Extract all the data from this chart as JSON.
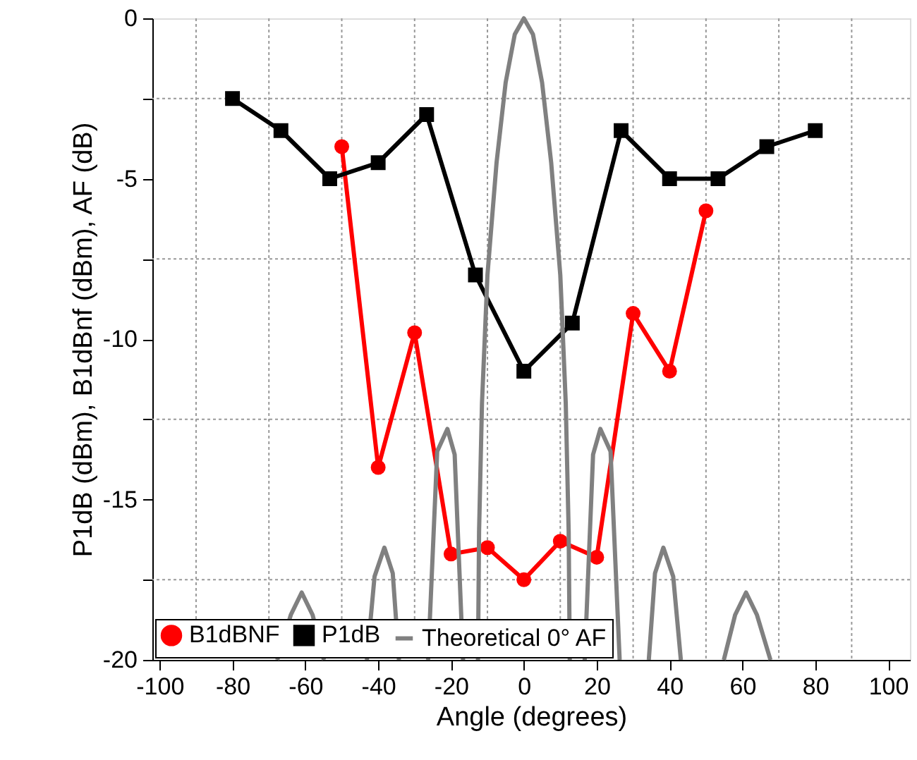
{
  "chart_data": {
    "type": "line",
    "xlabel": "Angle (degrees)",
    "ylabel": "P1dB (dBm), B1dBnf (dBm), AF (dB)",
    "xlim": [
      -102,
      106
    ],
    "xticks": [
      -100,
      {
        "value": -90,
        "label": null
      },
      -80,
      {
        "value": -70,
        "label": null
      },
      -60,
      {
        "value": -50,
        "label": null
      },
      -40,
      {
        "value": -30,
        "label": null
      },
      -20,
      {
        "value": -10,
        "label": null
      },
      0,
      {
        "value": 10,
        "label": null
      },
      20,
      {
        "value": 30,
        "label": null
      },
      40,
      {
        "value": 50,
        "label": null
      },
      60,
      {
        "value": 70,
        "label": null
      },
      80,
      {
        "value": 90,
        "label": null
      },
      100
    ],
    "ylim": [
      -20,
      0
    ],
    "yticks": [
      -20,
      {
        "value": -17.5,
        "label": null
      },
      -15,
      {
        "value": -12.5,
        "label": null
      },
      -10,
      {
        "value": -7.5,
        "label": null
      },
      -5,
      {
        "value": -2.5,
        "label": null
      },
      0
    ],
    "grid": true,
    "legend": "bottom",
    "series": [
      {
        "name": "B1dBNF",
        "color": "#ff0000",
        "marker": "circle",
        "x": [
          -50,
          -40,
          -30,
          -20,
          -10,
          0,
          10,
          20,
          30,
          40,
          50
        ],
        "values": [
          -4,
          -14,
          -9.8,
          -16.7,
          -16.5,
          -17.5,
          -16.3,
          -16.8,
          -9.2,
          -11,
          -6
        ]
      },
      {
        "name": "P1dB",
        "color": "#000000",
        "marker": "square",
        "x": [
          -80,
          -66.7,
          -53.3,
          -40,
          -26.7,
          -13.3,
          0,
          13.3,
          26.7,
          40,
          53.3,
          66.7,
          80
        ],
        "values": [
          -2.5,
          -3.5,
          -5,
          -4.5,
          -3,
          -8,
          -11,
          -9.5,
          -3.5,
          -5,
          -5,
          -4,
          -3.5
        ]
      },
      {
        "name": "Theoretical 0° AF",
        "color": "#808080",
        "marker": "none",
        "x": [
          -67.7,
          -64,
          -61,
          -58,
          -54.9,
          -50,
          -43.1,
          -41,
          -38.3,
          -36,
          -34.3,
          -30,
          -26.3,
          -23.8,
          -21,
          -19,
          -16.7,
          -14.5,
          -12.6,
          -12.3,
          -11.5,
          -10,
          -7.5,
          -5,
          -2.5,
          0,
          2.5,
          5,
          7.5,
          10,
          11.5,
          12.3,
          12.6,
          14.5,
          16.7,
          19,
          21,
          23.8,
          26.3,
          30,
          34.3,
          36,
          38.3,
          41,
          43.1,
          50,
          54.9,
          58,
          61,
          64,
          67.7
        ],
        "values": [
          -20,
          -18.6,
          -17.9,
          -18.6,
          -20,
          null,
          -20,
          -17.4,
          -16.5,
          -17.3,
          -20,
          null,
          -20,
          -13.5,
          -12.8,
          -13.6,
          -20,
          null,
          -20,
          -16,
          -12,
          -8,
          -4.5,
          -2,
          -0.5,
          0,
          -0.5,
          -2,
          -4.5,
          -8,
          -12,
          -16,
          -20,
          null,
          -20,
          -13.6,
          -12.8,
          -13.5,
          -20,
          null,
          -20,
          -17.3,
          -16.5,
          -17.4,
          -20,
          null,
          -20,
          -18.6,
          -17.9,
          -18.6,
          -20
        ]
      }
    ]
  }
}
